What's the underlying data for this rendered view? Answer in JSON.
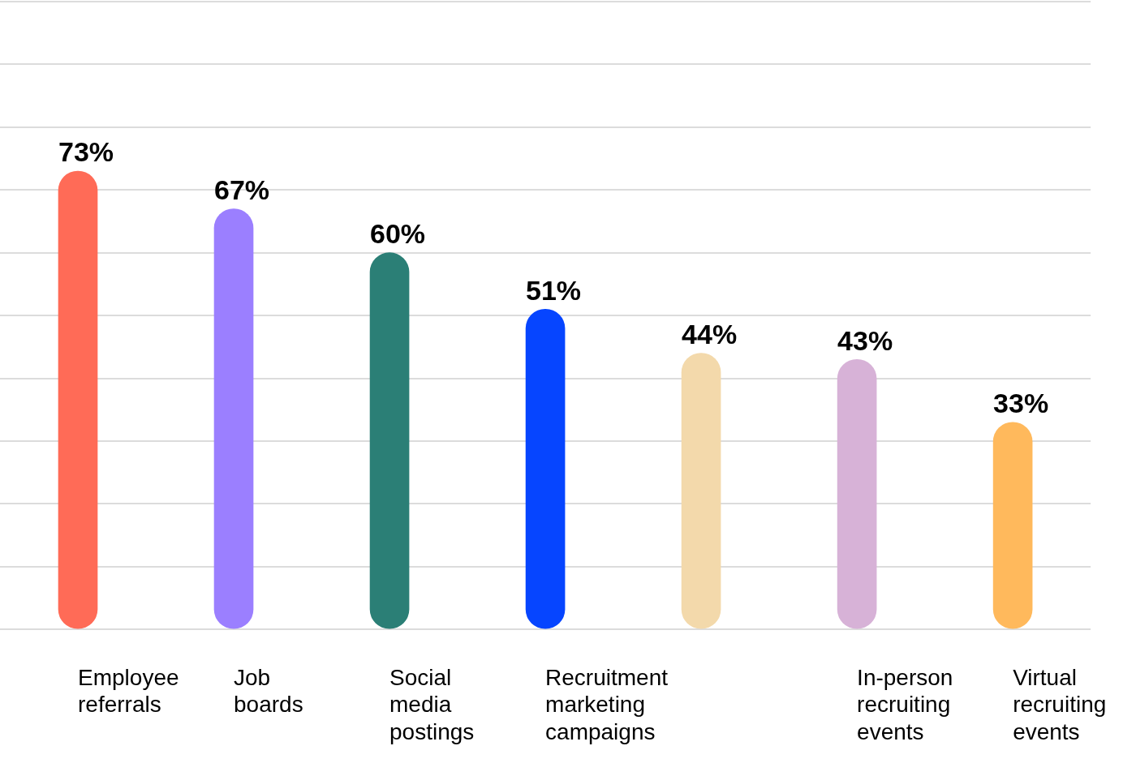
{
  "chart_data": {
    "type": "bar",
    "categories": [
      "Employee referrals",
      "Job boards",
      "Social media postings",
      "Recruitment marketing campaigns",
      null,
      "In-person recruiting events",
      "Virtual recruiting events"
    ],
    "values": [
      73,
      67,
      60,
      51,
      44,
      43,
      33
    ],
    "value_labels": [
      "73%",
      "67%",
      "60%",
      "51%",
      "44%",
      "43%",
      "33%"
    ],
    "colors": [
      "#ff6b57",
      "#9b7fff",
      "#2b7f76",
      "#0645ff",
      "#f3d9ab",
      "#d7b2d7",
      "#ffb95c"
    ],
    "ylim": [
      0,
      100
    ],
    "yticks": [
      {
        "value": 0,
        "label": null
      },
      {
        "value": 10,
        "label": null
      },
      {
        "value": 20,
        "label": null
      },
      {
        "value": 30,
        "label": null
      },
      {
        "value": 40,
        "label": null
      },
      {
        "value": 50,
        "label": null
      },
      {
        "value": 60,
        "label": null
      },
      {
        "value": 70,
        "label": null
      },
      {
        "value": 80,
        "label": null
      },
      {
        "value": 90,
        "label": null
      },
      {
        "value": 100,
        "label": null
      }
    ],
    "grid": "y",
    "tick_labels": "x",
    "legend": false
  }
}
